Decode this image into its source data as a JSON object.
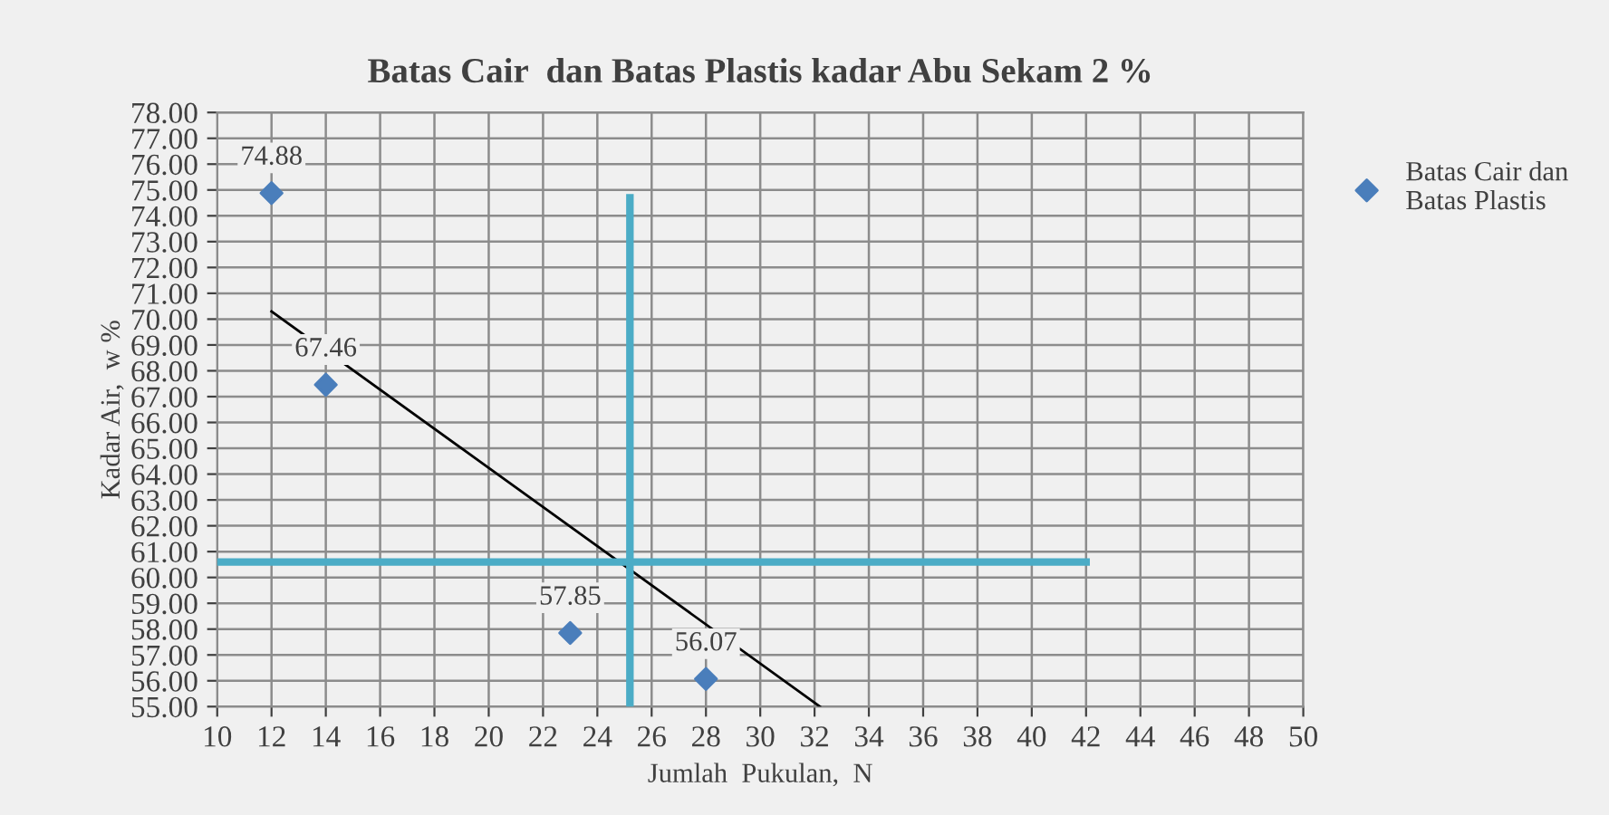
{
  "chart_data": {
    "type": "scatter",
    "title": "Batas Cair  dan Batas Plastis kadar Abu Sekam 2 %",
    "xlabel": "Jumlah  Pukulan,  N",
    "ylabel": "Kadar Air,  w %",
    "xlim": [
      10,
      50
    ],
    "xticks": [
      10,
      12,
      14,
      16,
      18,
      20,
      22,
      24,
      26,
      28,
      30,
      32,
      34,
      36,
      38,
      40,
      42,
      44,
      46,
      48,
      50
    ],
    "ylim": [
      55,
      78
    ],
    "yticks": [
      {
        "value": 55,
        "label": "55.00"
      },
      {
        "value": 56,
        "label": "56.00"
      },
      {
        "value": 57,
        "label": "57.00"
      },
      {
        "value": 58,
        "label": "58.00"
      },
      {
        "value": 59,
        "label": "59.00"
      },
      {
        "value": 60,
        "label": "60.00"
      },
      {
        "value": 61,
        "label": "61.00"
      },
      {
        "value": 62,
        "label": "62.00"
      },
      {
        "value": 63,
        "label": "63.00"
      },
      {
        "value": 64,
        "label": "64.00"
      },
      {
        "value": 65,
        "label": "65.00"
      },
      {
        "value": 66,
        "label": "66.00"
      },
      {
        "value": 67,
        "label": "67.00"
      },
      {
        "value": 68,
        "label": "68.00"
      },
      {
        "value": 69,
        "label": "69.00"
      },
      {
        "value": 70,
        "label": "70.00"
      },
      {
        "value": 71,
        "label": "71.00"
      },
      {
        "value": 72,
        "label": "72.00"
      },
      {
        "value": 73,
        "label": "73.00"
      },
      {
        "value": 74,
        "label": "74.00"
      },
      {
        "value": 75,
        "label": "75.00"
      },
      {
        "value": 76,
        "label": "76.00"
      },
      {
        "value": 77,
        "label": "77.00"
      },
      {
        "value": 78,
        "label": "78.00"
      }
    ],
    "grid": true,
    "legend": "right",
    "series": [
      {
        "name": "Batas Cair dan Batas Plastis",
        "marker": "diamond",
        "color": "#4a7ebb",
        "x": [
          12,
          14,
          23,
          28
        ],
        "values": [
          74.88,
          67.46,
          57.85,
          56.07
        ],
        "value_labels": [
          "74.88",
          "67.46",
          "57.85",
          "56.07"
        ]
      },
      {
        "type": "line",
        "color": "#000000",
        "x": [
          12,
          32.2
        ],
        "values": [
          70.3,
          55
        ]
      },
      {
        "type": "line",
        "color": "#4bacc6",
        "x": [
          25.2,
          25.2
        ],
        "values": [
          55,
          74.7
        ]
      },
      {
        "type": "line",
        "color": "#4bacc6",
        "x": [
          10,
          42
        ],
        "values": [
          60.6,
          60.6
        ]
      }
    ]
  }
}
